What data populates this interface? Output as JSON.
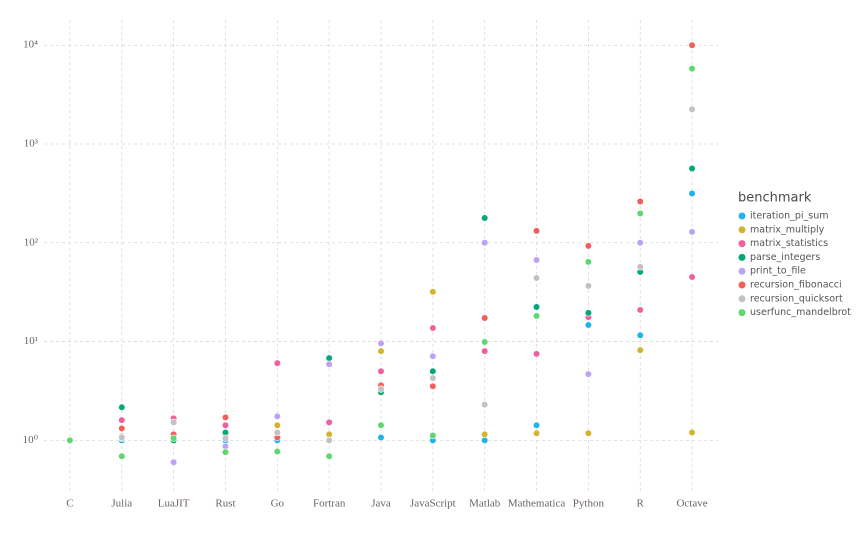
{
  "chart_data": {
    "type": "scatter",
    "categories": [
      "C",
      "Julia",
      "LuaJIT",
      "Rust",
      "Go",
      "Fortran",
      "Java",
      "JavaScript",
      "Matlab",
      "Mathematica",
      "Python",
      "R",
      "Octave"
    ],
    "log_scale_y": true,
    "grid": true,
    "legend": "right",
    "legend_title": "benchmark",
    "ylim": [
      0.3,
      18000
    ],
    "yticks": [
      {
        "value": 1,
        "label": "10⁰"
      },
      {
        "value": 10,
        "label": "10¹"
      },
      {
        "value": 100,
        "label": "10²"
      },
      {
        "value": 1000,
        "label": "10³"
      },
      {
        "value": 10000,
        "label": "10⁴"
      }
    ],
    "series": [
      {
        "name": "iteration_pi_sum",
        "color": "#1fb5ec",
        "values": [
          1,
          1.0,
          1.0,
          1.0,
          1.0,
          1.0,
          1.07,
          1.0,
          1.0,
          1.42,
          14.7,
          11.6,
          315
        ]
      },
      {
        "name": "matrix_multiply",
        "color": "#d3b430",
        "values": [
          1,
          1.05,
          1.1,
          1.12,
          1.42,
          1.15,
          8.0,
          31.9,
          1.15,
          1.18,
          1.18,
          8.2,
          1.2
        ]
      },
      {
        "name": "matrix_statistics",
        "color": "#f0609c",
        "values": [
          1,
          1.6,
          1.67,
          1.42,
          6.05,
          1.52,
          5.0,
          13.7,
          8.0,
          7.5,
          17.7,
          20.9,
          45
        ]
      },
      {
        "name": "parse_integers",
        "color": "#00a87a",
        "values": [
          1,
          2.16,
          1.0,
          1.2,
          1.1,
          6.8,
          3.07,
          5.0,
          178,
          22.4,
          19.5,
          50.8,
          565
        ]
      },
      {
        "name": "print_to_file",
        "color": "#bca2f5",
        "values": [
          1,
          1.1,
          0.6,
          0.87,
          1.75,
          5.9,
          9.6,
          7.1,
          100,
          67,
          4.68,
          100,
          129
        ]
      },
      {
        "name": "recursion_fibonacci",
        "color": "#f25f58",
        "values": [
          1,
          1.32,
          1.15,
          1.71,
          1.07,
          1.0,
          3.6,
          3.53,
          17.3,
          132,
          93,
          262,
          10000
        ]
      },
      {
        "name": "recursion_quicksort",
        "color": "#c2c2c2",
        "values": [
          1,
          1.07,
          1.52,
          1.05,
          1.2,
          1.0,
          3.3,
          4.26,
          2.3,
          44,
          36.6,
          57,
          2240
        ]
      },
      {
        "name": "userfunc_mandelbrot",
        "color": "#5fd66e",
        "values": [
          1,
          0.69,
          1.05,
          0.76,
          0.77,
          0.69,
          1.42,
          1.12,
          9.9,
          18.2,
          64,
          198,
          5800
        ]
      }
    ]
  }
}
